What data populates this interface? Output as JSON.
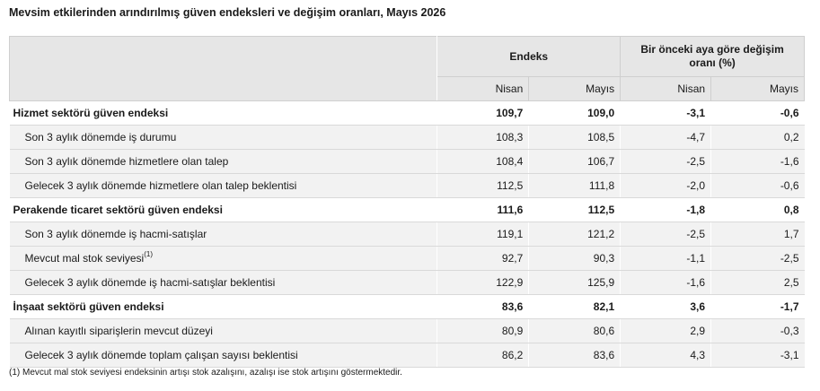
{
  "title": "Mevsim etkilerinden arındırılmış güven endeksleri ve değişim oranları, Mayıs 2026",
  "header": {
    "group1": "Endeks",
    "group2": "Bir önceki aya göre değişim oranı (%)",
    "cols": [
      "Nisan",
      "Mayıs",
      "Nisan",
      "Mayıs"
    ]
  },
  "rows": [
    {
      "label": "Hizmet sektörü güven endeksi",
      "note": "",
      "v": [
        "109,7",
        "109,0",
        "-3,1",
        "-0,6"
      ]
    },
    {
      "label": "Son 3 aylık dönemde iş durumu",
      "note": "",
      "v": [
        "108,3",
        "108,5",
        "-4,7",
        "0,2"
      ]
    },
    {
      "label": "Son 3 aylık dönemde hizmetlere olan talep",
      "note": "",
      "v": [
        "108,4",
        "106,7",
        "-2,5",
        "-1,6"
      ]
    },
    {
      "label": "Gelecek 3 aylık dönemde hizmetlere olan talep beklentisi",
      "note": "",
      "v": [
        "112,5",
        "111,8",
        "-2,0",
        "-0,6"
      ]
    },
    {
      "label": "Perakende ticaret sektörü güven endeksi",
      "note": "",
      "v": [
        "111,6",
        "112,5",
        "-1,8",
        "0,8"
      ]
    },
    {
      "label": "Son 3 aylık dönemde iş hacmi-satışlar",
      "note": "",
      "v": [
        "119,1",
        "121,2",
        "-2,5",
        "1,7"
      ]
    },
    {
      "label": "Mevcut mal stok seviyesi",
      "note": "(1)",
      "v": [
        "92,7",
        "90,3",
        "-1,1",
        "-2,5"
      ]
    },
    {
      "label": "Gelecek 3 aylık dönemde iş hacmi-satışlar beklentisi",
      "note": "",
      "v": [
        "122,9",
        "125,9",
        "-1,6",
        "2,5"
      ]
    },
    {
      "label": "İnşaat sektörü güven endeksi",
      "note": "",
      "v": [
        "83,6",
        "82,1",
        "3,6",
        "-1,7"
      ]
    },
    {
      "label": "Alınan kayıtlı siparişlerin mevcut düzeyi",
      "note": "",
      "v": [
        "80,9",
        "80,6",
        "2,9",
        "-0,3"
      ]
    },
    {
      "label": "Gelecek 3 aylık dönemde toplam çalışan sayısı beklentisi",
      "note": "",
      "v": [
        "86,2",
        "83,6",
        "4,3",
        "-3,1"
      ]
    }
  ],
  "footnote": "(1) Mevcut mal stok seviyesi endeksinin artışı stok azalışını, azalışı ise stok artışını göstermektedir."
}
